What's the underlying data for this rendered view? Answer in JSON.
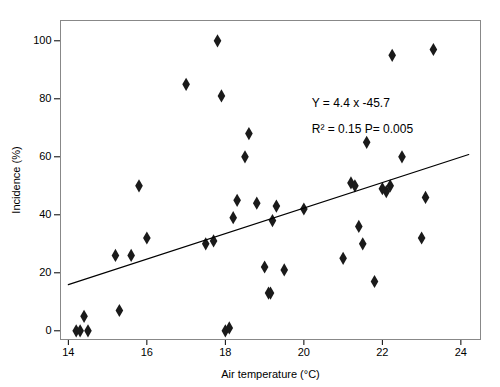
{
  "chart_data": {
    "type": "scatter",
    "xlabel": "Air temperature (°C)",
    "ylabel": "Incidence (%)",
    "xlim": [
      13.8,
      24.5
    ],
    "ylim": [
      -3,
      107
    ],
    "xticks": [
      14,
      16,
      18,
      20,
      22,
      24
    ],
    "yticks": [
      0,
      20,
      40,
      60,
      80,
      100
    ],
    "series": [
      {
        "type": "scatter",
        "marker": "diamond",
        "color": "#1a1a1a",
        "x": [
          14.2,
          14.3,
          14.4,
          14.5,
          15.2,
          15.3,
          15.6,
          15.8,
          16.0,
          17.0,
          17.5,
          17.7,
          17.8,
          17.9,
          18.0,
          18.1,
          18.2,
          18.3,
          18.5,
          18.6,
          18.8,
          19.0,
          19.1,
          19.15,
          19.2,
          19.3,
          19.5,
          20.0,
          21.0,
          21.2,
          21.3,
          21.4,
          21.5,
          21.6,
          21.8,
          22.0,
          22.1,
          22.2,
          22.25,
          22.5,
          23.0,
          23.1,
          23.3
        ],
        "values": [
          0,
          0,
          5,
          0,
          26,
          7,
          26,
          50,
          32,
          85,
          30,
          31,
          100,
          81,
          0,
          1,
          39,
          45,
          60,
          68,
          44,
          22,
          13,
          13,
          38,
          43,
          21,
          42,
          25,
          51,
          50,
          36,
          30,
          65,
          17,
          49,
          48,
          50,
          95,
          60,
          32,
          46,
          97
        ]
      },
      {
        "type": "line",
        "line_style": "solid",
        "color": "#000000",
        "x": [
          14.0,
          24.2
        ],
        "values": [
          15.9,
          60.78
        ]
      }
    ],
    "annotations": [
      {
        "text": "Y = 4.4 x -45.7",
        "x": 20.2,
        "y": 80
      },
      {
        "text": "R² = 0.15 P= 0.005",
        "x": 20.2,
        "y": 71
      }
    ]
  }
}
